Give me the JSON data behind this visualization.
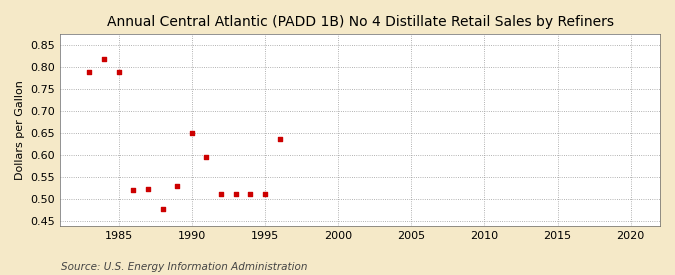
{
  "title": "Annual Central Atlantic (PADD 1B) No 4 Distillate Retail Sales by Refiners",
  "ylabel": "Dollars per Gallon",
  "source": "Source: U.S. Energy Information Administration",
  "background_color": "#f5e9c8",
  "plot_bg_color": "#ffffff",
  "data_points": [
    [
      1983,
      0.79
    ],
    [
      1984,
      0.818
    ],
    [
      1985,
      0.79
    ],
    [
      1986,
      0.522
    ],
    [
      1987,
      0.523
    ],
    [
      1988,
      0.478
    ],
    [
      1989,
      0.53
    ],
    [
      1990,
      0.65
    ],
    [
      1991,
      0.597
    ],
    [
      1992,
      0.512
    ],
    [
      1993,
      0.513
    ],
    [
      1994,
      0.513
    ],
    [
      1995,
      0.513
    ],
    [
      1996,
      0.638
    ]
  ],
  "xlim": [
    1981,
    2022
  ],
  "ylim": [
    0.44,
    0.875
  ],
  "xticks": [
    1985,
    1990,
    1995,
    2000,
    2005,
    2010,
    2015,
    2020
  ],
  "yticks": [
    0.45,
    0.5,
    0.55,
    0.6,
    0.65,
    0.7,
    0.75,
    0.8,
    0.85
  ],
  "marker_color": "#cc0000",
  "marker": "s",
  "marker_size": 3.5,
  "title_fontsize": 10,
  "label_fontsize": 8,
  "tick_fontsize": 8,
  "source_fontsize": 7.5
}
